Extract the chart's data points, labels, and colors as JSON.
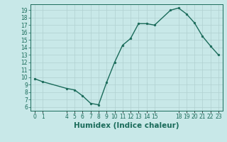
{
  "x": [
    0,
    1,
    4,
    5,
    6,
    7,
    8,
    9,
    10,
    11,
    12,
    13,
    14,
    15,
    17,
    18,
    19,
    20,
    21,
    22,
    23
  ],
  "y": [
    9.8,
    9.4,
    8.5,
    8.3,
    7.5,
    6.5,
    6.3,
    9.3,
    12.0,
    14.3,
    15.2,
    17.2,
    17.2,
    17.0,
    19.0,
    19.3,
    18.5,
    17.3,
    15.5,
    14.2,
    13.0
  ],
  "line_color": "#1a6b5a",
  "marker_color": "#1a6b5a",
  "bg_color": "#c8e8e8",
  "grid_color": "#b0d0d0",
  "xlabel": "Humidex (Indice chaleur)",
  "ylim": [
    5.5,
    19.8
  ],
  "xlim": [
    -0.5,
    23.5
  ],
  "yticks": [
    6,
    7,
    8,
    9,
    10,
    11,
    12,
    13,
    14,
    15,
    16,
    17,
    18,
    19
  ],
  "xtick_positions": [
    0,
    1,
    4,
    5,
    6,
    7,
    8,
    9,
    10,
    11,
    12,
    13,
    14,
    15,
    18,
    19,
    20,
    21,
    22,
    23
  ],
  "xtick_labels": [
    "0",
    "1",
    "4",
    "5",
    "6",
    "7",
    "8",
    "9",
    "10",
    "11",
    "12",
    "13",
    "14",
    "15",
    "18",
    "19",
    "20",
    "21",
    "22",
    "23"
  ],
  "tick_color": "#1a6b5a",
  "tick_fontsize": 5.5,
  "xlabel_fontsize": 7.5,
  "line_width": 1.0,
  "marker_size": 2.0
}
